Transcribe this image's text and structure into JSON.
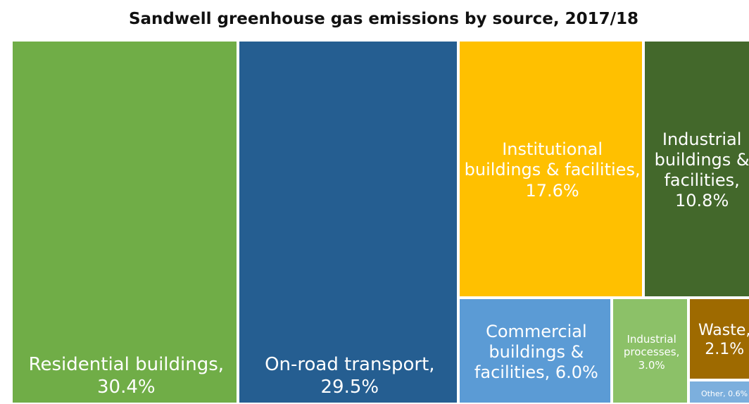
{
  "chart_data": {
    "type": "treemap",
    "title": "Sandwell greenhouse gas emissions by source, 2017/18",
    "unit": "%",
    "series": [
      {
        "category": "Residential buildings",
        "value": 30.4,
        "label_lines": [
          "Residential buildings,",
          "30.4%"
        ],
        "color": "#70ad47"
      },
      {
        "category": "On-road transport",
        "value": 29.5,
        "label_lines": [
          "On-road transport,",
          "29.5%"
        ],
        "color": "#255e91"
      },
      {
        "category": "Institutional buildings & facilities",
        "value": 17.6,
        "label_lines": [
          "Institutional",
          "buildings & facilities,",
          "17.6%"
        ],
        "color": "#ffc000"
      },
      {
        "category": "Industrial buildings & facilities",
        "value": 10.8,
        "label_lines": [
          "Industrial",
          "buildings &",
          "facilities,",
          "10.8%"
        ],
        "color": "#43682b"
      },
      {
        "category": "Commercial buildings & facilities",
        "value": 6.0,
        "label_lines": [
          "Commercial",
          "buildings &",
          "facilities, 6.0%"
        ],
        "color": "#5b9bd5"
      },
      {
        "category": "Industrial processes",
        "value": 3.0,
        "label_lines": [
          "Industrial",
          "processes,",
          "3.0%"
        ],
        "color": "#8cc168"
      },
      {
        "category": "Waste",
        "value": 2.1,
        "label_lines": [
          "Waste,",
          "2.1%"
        ],
        "color": "#9e6a00"
      },
      {
        "category": "Other",
        "value": 0.6,
        "label_lines": [
          "Other, 0.6%"
        ],
        "color": "#7cafdd"
      }
    ]
  }
}
